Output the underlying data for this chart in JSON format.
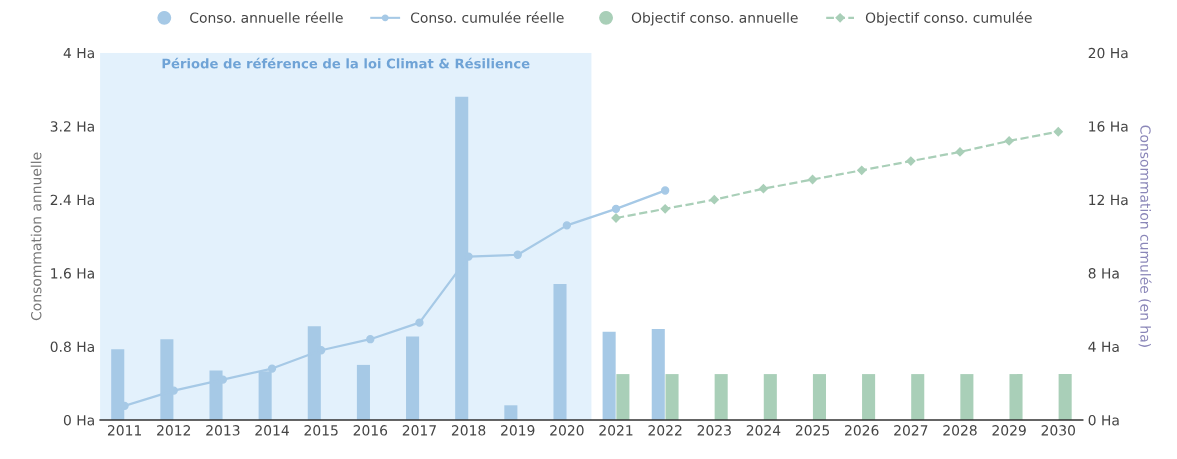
{
  "chart_data": {
    "type": "bar",
    "categories": [
      "2011",
      "2012",
      "2013",
      "2014",
      "2015",
      "2016",
      "2017",
      "2018",
      "2019",
      "2020",
      "2021",
      "2022",
      "2023",
      "2024",
      "2025",
      "2026",
      "2027",
      "2028",
      "2029",
      "2030"
    ],
    "series": [
      {
        "name": "Conso. annuelle réelle",
        "color": "#a6c9e6",
        "values": [
          0.77,
          0.88,
          0.54,
          0.53,
          1.02,
          0.6,
          0.91,
          3.52,
          0.16,
          1.48,
          0.96,
          0.99,
          null,
          null,
          null,
          null,
          null,
          null,
          null,
          null
        ]
      },
      {
        "name": "Conso. cumulée réelle",
        "type": "line",
        "axis": "y2",
        "color": "#a6c9e6",
        "marker": "circle",
        "line_style": "solid",
        "values": [
          0.77,
          1.6,
          2.2,
          2.8,
          3.8,
          4.4,
          5.3,
          8.9,
          9.0,
          10.6,
          11.5,
          12.5,
          null,
          null,
          null,
          null,
          null,
          null,
          null,
          null
        ]
      },
      {
        "name": "Objectif conso. annuelle",
        "color": "#a9cfb8",
        "values": [
          null,
          null,
          null,
          null,
          null,
          null,
          null,
          null,
          null,
          null,
          0.5,
          0.5,
          0.5,
          0.5,
          0.5,
          0.5,
          0.5,
          0.5,
          0.5,
          0.5
        ]
      },
      {
        "name": "Objectif conso. cumulée",
        "type": "line",
        "axis": "y2",
        "color": "#a9cfb8",
        "marker": "diamond",
        "line_style": "dashed",
        "values": [
          null,
          null,
          null,
          null,
          null,
          null,
          null,
          null,
          null,
          null,
          11.0,
          11.5,
          12.0,
          12.6,
          13.1,
          13.6,
          14.1,
          14.6,
          15.2,
          15.7
        ]
      }
    ],
    "ylabel": "Consommation annuelle",
    "y2label": "Consommation cumulée (en ha)",
    "ylim": [
      0,
      4
    ],
    "yticks": [
      {
        "value": 0,
        "label": "0 Ha"
      },
      {
        "value": 0.8,
        "label": "0.8 Ha"
      },
      {
        "value": 1.6,
        "label": "1.6 Ha"
      },
      {
        "value": 2.4,
        "label": "2.4 Ha"
      },
      {
        "value": 3.2,
        "label": "3.2 Ha"
      },
      {
        "value": 4,
        "label": "4 Ha"
      }
    ],
    "y2lim": [
      0,
      20
    ],
    "y2ticks": [
      {
        "value": 0,
        "label": "0 Ha"
      },
      {
        "value": 4,
        "label": "4 Ha"
      },
      {
        "value": 8,
        "label": "8 Ha"
      },
      {
        "value": 12,
        "label": "12 Ha"
      },
      {
        "value": 16,
        "label": "16 Ha"
      },
      {
        "value": 20,
        "label": "20 Ha"
      }
    ],
    "bands": [
      {
        "axis": "x",
        "from": "2011",
        "to": "2020",
        "label": "Période de référence de la loi Climat & Résilience",
        "color": "#e3f1fc"
      }
    ],
    "grid": false,
    "legend": "top"
  }
}
